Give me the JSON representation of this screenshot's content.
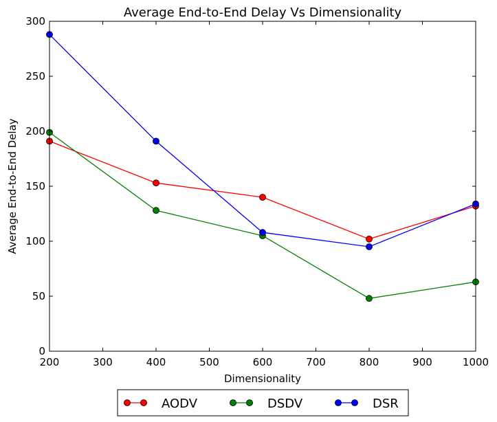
{
  "chart_data": {
    "type": "line",
    "title": "Average End-to-End Delay Vs Dimensionality",
    "xlabel": "Dimensionality",
    "ylabel": "Average End-to-End Delay",
    "xlim": [
      200,
      1000
    ],
    "ylim": [
      0,
      300
    ],
    "xticks": [
      "200",
      "300",
      "400",
      "500",
      "600",
      "700",
      "800",
      "900",
      "1000"
    ],
    "yticks": [
      "0",
      "50",
      "100",
      "150",
      "200",
      "250",
      "300"
    ],
    "x": [
      200,
      400,
      600,
      800,
      1000
    ],
    "grid": false,
    "legend_position": "bottom-center",
    "series": [
      {
        "name": "AODV",
        "color": "#ff0000",
        "values": [
          191,
          153,
          140,
          102,
          132
        ]
      },
      {
        "name": "DSDV",
        "color": "#008000",
        "values": [
          199,
          128,
          105,
          48,
          63
        ]
      },
      {
        "name": "DSR",
        "color": "#0000ff",
        "values": [
          288,
          191,
          108,
          95,
          134
        ]
      }
    ]
  }
}
